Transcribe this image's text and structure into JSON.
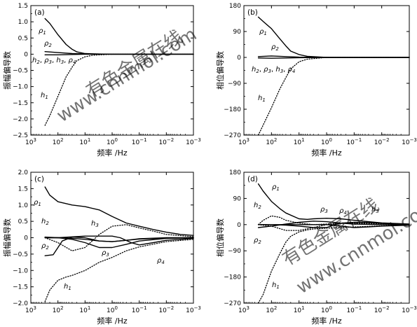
{
  "watermark": {
    "text_top": "有色金属在线",
    "text_bottom": "www.cnnmol.com"
  },
  "chart_data": [
    {
      "panel": "(a)",
      "type": "line",
      "xlabel": "频率 /Hz",
      "ylabel": "振幅偏导数",
      "x_scale": "log",
      "x_reversed": true,
      "xlim": [
        1000,
        0.001
      ],
      "ylim": [
        -2.5,
        1.5
      ],
      "x_ticks": [
        1000,
        100,
        10,
        1,
        0.1,
        0.01,
        0.001
      ],
      "x_tick_labels": [
        "10^3",
        "10^2",
        "10^1",
        "10^0",
        "10^-1",
        "10^-2",
        "10^-3"
      ],
      "y_ticks": [
        1.5,
        1.0,
        0.5,
        0,
        -0.5,
        -1.0,
        -1.5,
        -2.0,
        -2.5
      ],
      "y_tick_labels": [
        "1.5",
        "1.0",
        "0.5",
        "0",
        "-0.5",
        "-1.0",
        "-1.5",
        "-2.0",
        "-2.5"
      ],
      "series": [
        {
          "name": "ρ1",
          "style": "solid",
          "x": [
            300,
            200,
            100,
            50,
            30,
            20,
            10,
            5,
            1,
            0.1,
            0.01,
            0.001
          ],
          "y": [
            1.1,
            0.95,
            0.6,
            0.3,
            0.15,
            0.07,
            0.02,
            0.01,
            0,
            0,
            0,
            0
          ]
        },
        {
          "name": "ρ2",
          "style": "solid",
          "x": [
            300,
            100,
            30,
            10,
            1,
            0.001
          ],
          "y": [
            0.08,
            0.05,
            0.02,
            0.01,
            0,
            0
          ]
        },
        {
          "name": "h2, ρ3, h3, ρ4",
          "style": "solid",
          "x": [
            300,
            100,
            30,
            10,
            1,
            0.001
          ],
          "y": [
            -0.02,
            -0.02,
            -0.01,
            0,
            0,
            0
          ]
        },
        {
          "name": "h1",
          "style": "dotted",
          "x": [
            300,
            200,
            100,
            50,
            30,
            20,
            10,
            5,
            1,
            0.1,
            0.001
          ],
          "y": [
            -2.2,
            -1.9,
            -1.3,
            -0.7,
            -0.4,
            -0.2,
            -0.08,
            -0.03,
            0,
            0,
            0
          ]
        }
      ],
      "annotations": [
        "ρ1",
        "ρ2",
        "h2, ρ3, h3, ρ4",
        "h1"
      ]
    },
    {
      "panel": "(b)",
      "type": "line",
      "xlabel": "频率 /Hz",
      "ylabel": "相位偏导数",
      "x_scale": "log",
      "x_reversed": true,
      "xlim": [
        1000,
        0.001
      ],
      "ylim": [
        -270,
        180
      ],
      "x_ticks": [
        1000,
        100,
        10,
        1,
        0.1,
        0.01,
        0.001
      ],
      "x_tick_labels": [
        "10^3",
        "10^2",
        "10^1",
        "10^0",
        "10^-1",
        "10^-2",
        "10^-3"
      ],
      "y_ticks": [
        180,
        90,
        0,
        -90,
        -180,
        -270
      ],
      "y_tick_labels": [
        "180",
        "90",
        "0",
        "-90",
        "-180",
        "-270"
      ],
      "series": [
        {
          "name": "ρ1",
          "style": "solid",
          "x": [
            300,
            200,
            100,
            50,
            30,
            20,
            10,
            5,
            1,
            0.1,
            0.001
          ],
          "y": [
            140,
            125,
            100,
            65,
            40,
            22,
            10,
            4,
            0,
            0,
            0
          ]
        },
        {
          "name": "ρ2",
          "style": "solid",
          "x": [
            300,
            100,
            30,
            10,
            1,
            0.001
          ],
          "y": [
            3,
            5,
            3,
            1,
            0,
            0
          ]
        },
        {
          "name": "h2, ρ3, h3, ρ4",
          "style": "solid",
          "x": [
            300,
            100,
            30,
            10,
            1,
            0.001
          ],
          "y": [
            -2,
            -3,
            -2,
            -1,
            0,
            0
          ]
        },
        {
          "name": "h1",
          "style": "dotted",
          "x": [
            300,
            200,
            100,
            50,
            30,
            20,
            10,
            5,
            1,
            0.1,
            0.001
          ],
          "y": [
            -270,
            -235,
            -175,
            -110,
            -70,
            -40,
            -15,
            -6,
            0,
            0,
            0
          ]
        }
      ],
      "annotations": [
        "ρ1",
        "ρ2",
        "h2, ρ3, h3, ρ4",
        "h1"
      ]
    },
    {
      "panel": "(c)",
      "type": "line",
      "xlabel": "频率 /Hz",
      "ylabel": "振幅偏导数",
      "x_scale": "log",
      "x_reversed": true,
      "xlim": [
        1000,
        0.001
      ],
      "ylim": [
        -2.0,
        2.0
      ],
      "x_ticks": [
        1000,
        100,
        10,
        1,
        0.1,
        0.01,
        0.001
      ],
      "x_tick_labels": [
        "10^3",
        "10^2",
        "10^1",
        "10^0",
        "10^-1",
        "10^-2",
        "10^-3"
      ],
      "y_ticks": [
        2.0,
        1.5,
        1.0,
        0.5,
        0,
        -0.5,
        -1.0,
        -1.5,
        -2.0
      ],
      "y_tick_labels": [
        "2.0",
        "1.5",
        "1.0",
        "0.5",
        "0",
        "-0.5",
        "-1.0",
        "-1.5",
        "-2.0"
      ],
      "series": [
        {
          "name": "ρ1",
          "style": "solid",
          "x": [
            300,
            200,
            100,
            30,
            10,
            3,
            1,
            0.3,
            0.1,
            0.03,
            0.01,
            0.003,
            0.001
          ],
          "y": [
            1.55,
            1.3,
            1.1,
            1.0,
            0.95,
            0.85,
            0.65,
            0.45,
            0.35,
            0.25,
            0.17,
            0.1,
            0.07
          ]
        },
        {
          "name": "ρ2",
          "style": "solid",
          "x": [
            300,
            150,
            100,
            70,
            30,
            10,
            3,
            1,
            0.3,
            0.1,
            0.01,
            0.001
          ],
          "y": [
            -0.55,
            -0.52,
            -0.3,
            -0.1,
            0.02,
            0,
            -0.1,
            -0.12,
            -0.08,
            -0.04,
            -0.01,
            0
          ]
        },
        {
          "name": "h2",
          "style": "solid",
          "x": [
            300,
            100,
            30,
            10,
            3,
            1,
            0.3,
            0.1,
            0.01,
            0.001
          ],
          "y": [
            0.02,
            0,
            -0.02,
            -0.05,
            -0.1,
            -0.12,
            -0.08,
            -0.03,
            0,
            0
          ]
        },
        {
          "name": "ρ3",
          "style": "solid",
          "x": [
            300,
            100,
            30,
            10,
            3,
            1,
            0.3,
            0.1,
            0.01,
            0.001
          ],
          "y": [
            0,
            0,
            -0.05,
            -0.15,
            -0.3,
            -0.3,
            -0.2,
            -0.1,
            -0.02,
            0
          ]
        },
        {
          "name": "ρ4",
          "style": "solid",
          "x": [
            300,
            100,
            10,
            1,
            0.5,
            0.2,
            0.1,
            0.03,
            0.01,
            0.001
          ],
          "y": [
            0,
            0,
            0.05,
            0.05,
            0,
            -0.15,
            -0.22,
            -0.15,
            -0.08,
            -0.02
          ]
        },
        {
          "name": "h3",
          "style": "dotted",
          "x": [
            300,
            100,
            30,
            10,
            3,
            1,
            0.3,
            0.1,
            0.03,
            0.01,
            0.001
          ],
          "y": [
            0,
            -0.15,
            -0.4,
            -0.3,
            0.1,
            0.35,
            0.4,
            0.3,
            0.2,
            0.1,
            0.03
          ]
        },
        {
          "name": "h1",
          "style": "dotted",
          "x": [
            300,
            200,
            100,
            50,
            30,
            10,
            3,
            1,
            0.3,
            0.1,
            0.01,
            0.001
          ],
          "y": [
            -1.95,
            -1.6,
            -1.3,
            -1.2,
            -1.15,
            -1.0,
            -0.75,
            -0.6,
            -0.4,
            -0.28,
            -0.12,
            -0.05
          ]
        }
      ],
      "annotations": [
        "ρ1",
        "h2",
        "ρ2",
        "h3",
        "ρ3",
        "ρ4",
        "h1"
      ]
    },
    {
      "panel": "(d)",
      "type": "line",
      "xlabel": "频率 /Hz",
      "ylabel": "相位偏导数",
      "x_scale": "log",
      "x_reversed": true,
      "xlim": [
        1000,
        0.001
      ],
      "ylim": [
        -270,
        180
      ],
      "x_ticks": [
        1000,
        100,
        10,
        1,
        0.1,
        0.01,
        0.001
      ],
      "x_tick_labels": [
        "10^3",
        "10^2",
        "10^1",
        "10^0",
        "10^-1",
        "10^-2",
        "10^-3"
      ],
      "y_ticks": [
        180,
        90,
        0,
        -90,
        -180,
        -270
      ],
      "y_tick_labels": [
        "180",
        "90",
        "0",
        "-90",
        "-180",
        "-270"
      ],
      "series": [
        {
          "name": "ρ1",
          "style": "solid",
          "x": [
            300,
            200,
            100,
            50,
            30,
            10,
            5,
            3,
            1,
            0.3,
            0.1,
            0.03,
            0.01,
            0.001
          ],
          "y": [
            140,
            115,
            80,
            55,
            40,
            20,
            18,
            20,
            22,
            20,
            15,
            10,
            6,
            2
          ]
        },
        {
          "name": "ρ2",
          "style": "solid",
          "x": [
            300,
            100,
            30,
            10,
            3,
            1,
            0.3,
            0.1,
            0.03,
            0.01,
            0.001
          ],
          "y": [
            -10,
            -5,
            2,
            8,
            12,
            10,
            5,
            2,
            1,
            0,
            0
          ]
        },
        {
          "name": "h2",
          "style": "dotted",
          "x": [
            300,
            200,
            100,
            50,
            30,
            10,
            3,
            1,
            0.3,
            0.1,
            0.01,
            0.001
          ],
          "y": [
            0,
            15,
            30,
            25,
            15,
            5,
            0,
            2,
            5,
            5,
            3,
            1
          ]
        },
        {
          "name": "ρ3",
          "style": "solid",
          "x": [
            300,
            100,
            30,
            10,
            3,
            1,
            0.5,
            0.3,
            0.1,
            0.03,
            0.01,
            0.001
          ],
          "y": [
            0,
            0,
            -2,
            -5,
            -10,
            -10,
            0,
            5,
            8,
            7,
            4,
            1
          ]
        },
        {
          "name": "ρ4",
          "style": "solid",
          "x": [
            300,
            100,
            10,
            1,
            0.3,
            0.1,
            0.03,
            0.01,
            0.001
          ],
          "y": [
            0,
            0,
            0,
            0,
            -5,
            -10,
            -8,
            -5,
            -2
          ]
        },
        {
          "name": "h3",
          "style": "dotted",
          "x": [
            300,
            100,
            30,
            10,
            3,
            1,
            0.3,
            0.1,
            0.03,
            0.01,
            0.001
          ],
          "y": [
            0,
            -5,
            -20,
            -20,
            -10,
            0,
            5,
            8,
            8,
            5,
            2
          ]
        },
        {
          "name": "h1",
          "style": "dotted",
          "x": [
            300,
            200,
            100,
            50,
            30,
            20,
            10,
            5,
            3,
            1,
            0.3,
            0.1,
            0.01,
            0.001
          ],
          "y": [
            -270,
            -240,
            -160,
            -100,
            -60,
            -40,
            -25,
            -18,
            -15,
            -12,
            -10,
            -8,
            -4,
            -1
          ]
        }
      ],
      "annotations": [
        "ρ1",
        "h2",
        "ρ3",
        "ρ4",
        "h3",
        "ρ2",
        "h1"
      ]
    }
  ]
}
